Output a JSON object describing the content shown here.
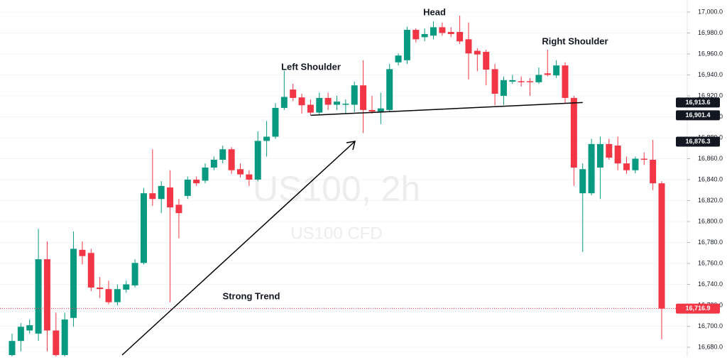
{
  "chart_data": {
    "type": "candlestick",
    "watermark": "US100, 2h",
    "watermark_sub": "US100 CFD",
    "annotations": [
      "Head",
      "Left Shoulder",
      "Right Shoulder",
      "Strong Trend"
    ],
    "up_color": "#089981",
    "down_color": "#f23645",
    "grid": true,
    "ylim": [
      16671.2,
      17011.5
    ],
    "yticks": [
      {
        "value": 17000,
        "label": "17,000.0"
      },
      {
        "value": 16980,
        "label": "16,980.0"
      },
      {
        "value": 16960,
        "label": "16,960.0"
      },
      {
        "value": 16940,
        "label": "16,940.0"
      },
      {
        "value": 16920,
        "label": "16,920.0"
      },
      {
        "value": 16900,
        "label": "16,900.0"
      },
      {
        "value": 16880,
        "label": "16,880.0"
      },
      {
        "value": 16860,
        "label": "16,860.0"
      },
      {
        "value": 16840,
        "label": "16,840.0"
      },
      {
        "value": 16820,
        "label": "16,820.0"
      },
      {
        "value": 16800,
        "label": "16,800.0"
      },
      {
        "value": 16780,
        "label": "16,780.0"
      },
      {
        "value": 16760,
        "label": "16,760.0"
      },
      {
        "value": 16740,
        "label": "16,740.0"
      },
      {
        "value": 16720,
        "label": "16,720.0"
      },
      {
        "value": 16700,
        "label": "16,700.0"
      },
      {
        "value": 16680,
        "label": "16,680.0"
      }
    ],
    "price_labels": [
      {
        "value": 16913.6,
        "label": "16,913.6",
        "color": "#131722"
      },
      {
        "value": 16901.4,
        "label": "16,901.4",
        "color": "#131722"
      },
      {
        "value": 16876.3,
        "label": "16,876.3",
        "color": "#131722"
      },
      {
        "value": 16716.9,
        "label": "16,716.9",
        "color": "#f23645"
      }
    ],
    "neckline": {
      "start_index": 34,
      "end_index": 65
    },
    "open": [
      16672.5,
      16686,
      16696,
      16693,
      16764,
      16696,
      16672.5,
      16708,
      16773,
      16770,
      16737,
      16735.5,
      16723,
      16735,
      16739,
      16760.5,
      16827,
      16821.5,
      16832.5,
      16816,
      16824.5,
      16840,
      16839,
      16851.5,
      16859,
      16869,
      16850,
      16845,
      16840,
      16877,
      16881,
      16908.5,
      16926,
      16918.5,
      16911.5,
      16904,
      16918,
      16911.5,
      16911.5,
      16911.5,
      16930,
      16906.5,
      16905,
      16906.5,
      16952,
      16954,
      16983,
      16976,
      16977.5,
      16985.5,
      16981,
      16981,
      16974,
      16963,
      16962,
      16945.5,
      16920,
      16933.5,
      16934,
      16934,
      16933,
      16941.5,
      16939.5,
      16949,
      16918,
      16827,
      16827,
      16851.5,
      16874,
      16872.5,
      16855.5,
      16849,
      16860,
      16859,
      16836.5
    ],
    "high": [
      16693,
      16703,
      16706.5,
      16793,
      16781,
      16713,
      16713,
      16790.5,
      16781,
      16774,
      16747,
      16743.5,
      16740,
      16743.5,
      16764,
      16832,
      16869,
      16838.5,
      16849,
      16821.5,
      16843,
      16843,
      16855.5,
      16862,
      16872.5,
      16871,
      16855.5,
      16849,
      16886,
      16896,
      16913,
      16944,
      16931.5,
      16922,
      16916.5,
      16923,
      16923,
      16920,
      16916.5,
      16933.5,
      16954,
      16920,
      16923,
      16950.5,
      16960.5,
      16986,
      16984.5,
      16984.5,
      16991,
      16990,
      16985.5,
      16996.5,
      16990,
      16965.5,
      16964,
      16950.5,
      16938.5,
      16940,
      16938.5,
      16937,
      16947,
      16964,
      16954,
      16952,
      16920,
      16855.5,
      16879,
      16881,
      16879,
      16881,
      16862,
      16862,
      16866,
      16878,
      16838.5
    ],
    "low": [
      16671,
      16676,
      16693,
      16686,
      16676,
      16671,
      16671,
      16699.5,
      16759,
      16733.5,
      16727,
      16721,
      16720,
      16732,
      16737,
      16759,
      16815,
      16808,
      16723,
      16784,
      16821.5,
      16834,
      16836.5,
      16849,
      16855.5,
      16845.5,
      16842,
      16834,
      16838.5,
      16862,
      16879,
      16906.5,
      16915,
      16903,
      16902,
      16902,
      16906.5,
      16906.5,
      16903,
      16904.5,
      16884.5,
      16903,
      16893,
      16904.5,
      16949,
      16950.5,
      16971,
      16972,
      16974,
      16977.5,
      16976,
      16969.5,
      16935.5,
      16943.5,
      16930,
      16911,
      16911,
      16931.5,
      16929,
      16920,
      16931.5,
      16938.5,
      16937,
      16913,
      16834,
      16771,
      16825,
      16821.5,
      16859,
      16849,
      16845.5,
      16846,
      16854,
      16830,
      16687.5
    ],
    "close": [
      16686,
      16699.5,
      16701,
      16764,
      16696,
      16672.5,
      16706.5,
      16774,
      16767,
      16737,
      16735.5,
      16723,
      16735.5,
      16740,
      16760.5,
      16827,
      16821.5,
      16834,
      16813.5,
      16808,
      16840,
      16836.5,
      16851.5,
      16859,
      16869,
      16849,
      16845,
      16840,
      16877,
      16881,
      16908.5,
      16919,
      16918,
      16911,
      16904,
      16918,
      16911.5,
      16914.5,
      16912.5,
      16930,
      16906.5,
      16905,
      16908,
      16945.5,
      16958.5,
      16983,
      16974,
      16979,
      16985.5,
      16980,
      16979,
      16972,
      16960.5,
      16959.5,
      16945,
      16922,
      16935,
      16935,
      16933,
      16933,
      16940,
      16940,
      16949,
      16918,
      16851.5,
      16850,
      16874,
      16874,
      16861,
      16855.5,
      16849,
      16860,
      16859,
      16836.5,
      16716.9
    ]
  }
}
